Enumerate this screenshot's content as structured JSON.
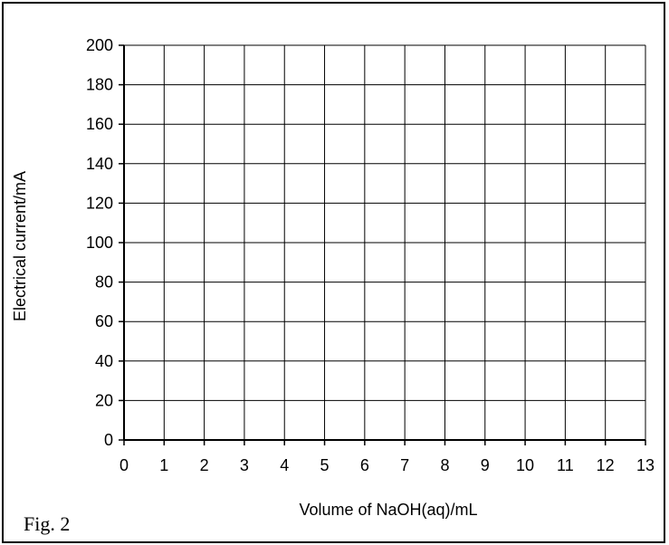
{
  "figure": {
    "label": "Fig. 2"
  },
  "chart_data": {
    "type": "line",
    "title": "",
    "xlabel": "Volume of NaOH(aq)/mL",
    "ylabel": "Electrical current/mA",
    "xlim": [
      0,
      13
    ],
    "ylim": [
      0,
      200
    ],
    "x_ticks": [
      0,
      1,
      2,
      3,
      4,
      5,
      6,
      7,
      8,
      9,
      10,
      11,
      12,
      13
    ],
    "y_ticks": [
      0,
      20,
      40,
      60,
      80,
      100,
      120,
      140,
      160,
      180,
      200
    ],
    "grid": true,
    "series": []
  }
}
